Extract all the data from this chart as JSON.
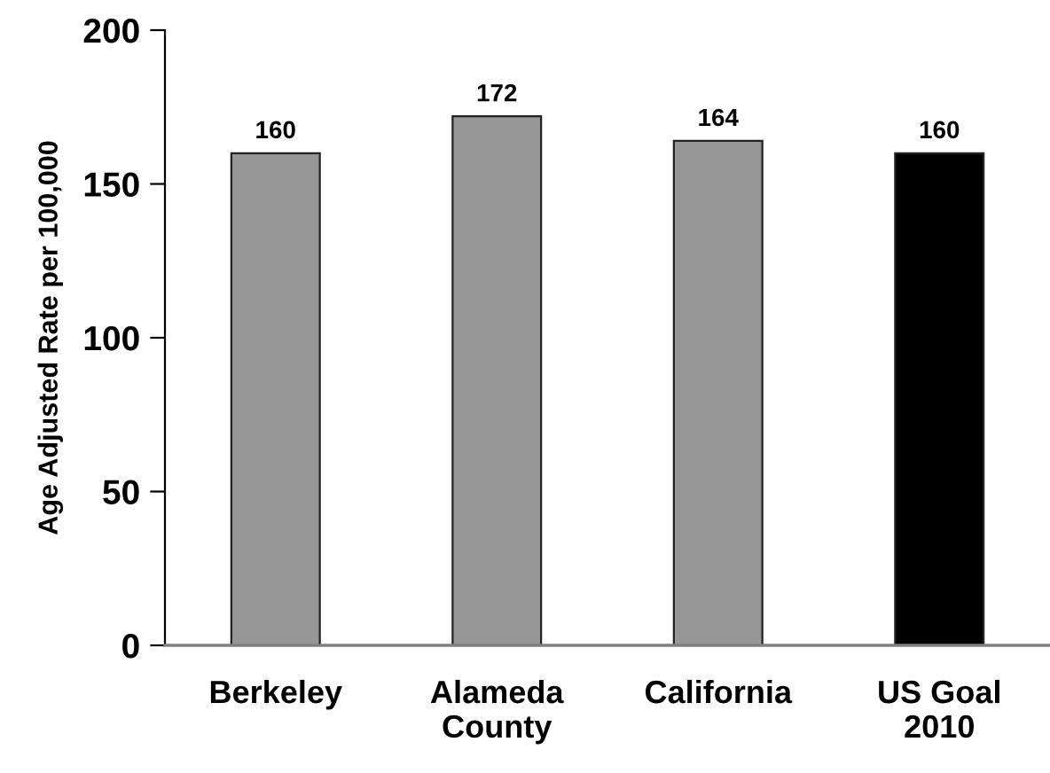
{
  "chart_data": {
    "type": "bar",
    "ylabel": "Age Adjusted Rate per 100,000",
    "categories": [
      "Berkeley",
      "Alameda\nCounty",
      "California",
      "US Goal\n2010"
    ],
    "values": [
      160,
      172,
      164,
      160
    ],
    "colors": [
      "#969696",
      "#969696",
      "#969696",
      "#000000"
    ],
    "ylim": [
      0,
      200
    ],
    "yticks": [
      0,
      50,
      100,
      150,
      200
    ],
    "data_labels": true,
    "grid": false,
    "legend": false
  }
}
